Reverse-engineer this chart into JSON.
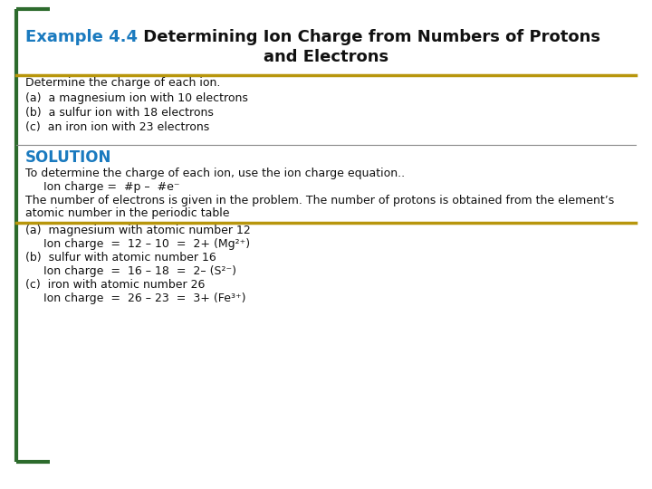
{
  "bg_color": "#ffffff",
  "border_color": "#2d6b2d",
  "title_example_color": "#1a7abf",
  "title_example_text": "Example 4.4",
  "title_rest_text": " Determining Ion Charge from Numbers of Protons",
  "title_line2": "and Electrons",
  "gold_line_color": "#b8960c",
  "gray_line_color": "#888888",
  "solution_color": "#1a7abf",
  "solution_text": "SOLUTION",
  "determine_text": "Determine the charge of each ion.",
  "items_question": [
    "(a)  a magnesium ion with 10 electrons",
    "(b)  a sulfur ion with 18 electrons",
    "(c)  an iron ion with 23 electrons"
  ],
  "solution_intro": "To determine the charge of each ion, use the ion charge equation..",
  "ion_charge_eq": "     Ion charge =  #p –  #e⁻",
  "solution_body1": "The number of electrons is given in the problem. The number of protons is obtained from the element’s",
  "solution_body2": "atomic number in the periodic table",
  "items_solution": [
    "(a)  magnesium with atomic number 12",
    "     Ion charge  =  12 – 10  =  2+ (Mg²⁺)",
    "(b)  sulfur with atomic number 16",
    "     Ion charge  =  16 – 18  =  2– (S²⁻)",
    "(c)  iron with atomic number 26",
    "     Ion charge  =  26 – 23  =  3+ (Fe³⁺)"
  ],
  "font_size_title": 13,
  "font_size_body": 9,
  "font_size_solution_header": 12
}
